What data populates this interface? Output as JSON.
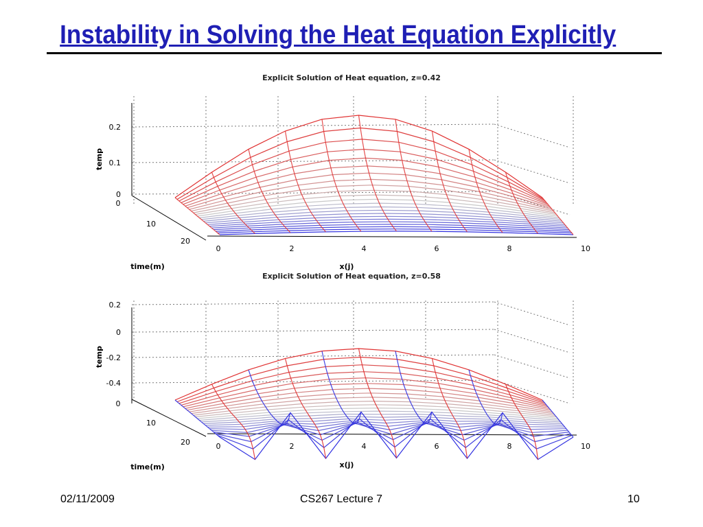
{
  "slide": {
    "title": "Instability in Solving the Heat Equation Explicitly"
  },
  "footer": {
    "date": "02/11/2009",
    "course": "CS267 Lecture 7",
    "page": "10"
  },
  "colors": {
    "title": "#1f1fb4",
    "early_time": "#e03030",
    "late_time": "#3030e0",
    "grid": "#777777"
  },
  "chart_data": [
    {
      "type": "surface",
      "title": "Explicit Solution of Heat equation, z=0.42",
      "xlabel": "x(j)",
      "ylabel": "time(m)",
      "zlabel": "temp",
      "x_ticks": [
        "0",
        "2",
        "4",
        "6",
        "8",
        "10"
      ],
      "time_ticks": [
        "0",
        "10",
        "20"
      ],
      "z_ticks": [
        "0",
        "0.1",
        "0.2"
      ],
      "xlim": [
        0,
        10
      ],
      "zlim": [
        0,
        0.2
      ],
      "grid": true,
      "x_values": [
        0,
        1,
        2,
        3,
        4,
        5,
        6,
        7,
        8,
        9,
        10
      ],
      "temp_at_time_0": [
        0,
        0.077,
        0.147,
        0.202,
        0.238,
        0.25,
        0.238,
        0.202,
        0.147,
        0.077,
        0
      ]
    },
    {
      "type": "surface",
      "title": "Explicit Solution of Heat equation, z=0.58",
      "xlabel": "x(j)",
      "ylabel": "time(m)",
      "zlabel": "temp",
      "x_ticks": [
        "0",
        "2",
        "4",
        "6",
        "8",
        "10"
      ],
      "time_ticks": [
        "0",
        "10",
        "20"
      ],
      "z_ticks": [
        "-0.4",
        "-0.2",
        "0",
        "0.2"
      ],
      "xlim": [
        0,
        10
      ],
      "zlim": [
        -0.4,
        0.25
      ],
      "grid": true,
      "x_values": [
        0,
        1,
        2,
        3,
        4,
        5,
        6,
        7,
        8,
        9,
        10
      ],
      "temp_at_time_0": [
        0,
        0.077,
        0.147,
        0.202,
        0.238,
        0.25,
        0.238,
        0.202,
        0.147,
        0.077,
        0
      ]
    }
  ]
}
